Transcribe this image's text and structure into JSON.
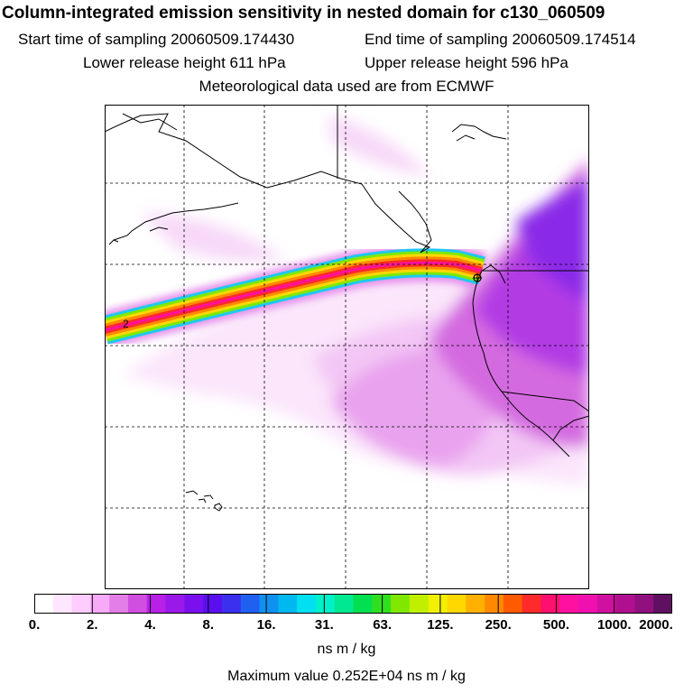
{
  "title": "Column-integrated emission sensitivity in nested domain for c130_060509",
  "sampling": {
    "start_label": "Start time of sampling 20060509.174430",
    "end_label": "End time of sampling 20060509.174514"
  },
  "release": {
    "lower_label": "Lower release height  611 hPa",
    "upper_label": "Upper release height  596 hPa"
  },
  "met_label": "Meteorological data used are from ECMWF",
  "map": {
    "contour_label": "2"
  },
  "colorbar": {
    "tick_labels": [
      "0.",
      "2.",
      "4.",
      "8.",
      "16.",
      "31.",
      "63.",
      "125.",
      "250.",
      "500.",
      "1000.",
      "2000."
    ],
    "colors": [
      "#ffffff",
      "#ffe6ff",
      "#ffccff",
      "#f7aaf7",
      "#e37de8",
      "#d04ee0",
      "#b820e8",
      "#9a18e8",
      "#7a10ee",
      "#5a10ee",
      "#3a30ee",
      "#2060f0",
      "#1090f0",
      "#00b8f0",
      "#00e0f0",
      "#00f0c8",
      "#00e890",
      "#00e050",
      "#30e020",
      "#80e800",
      "#c0f000",
      "#f0f000",
      "#ffd800",
      "#ffb000",
      "#ff8a00",
      "#ff5a00",
      "#ff2a2a",
      "#ff1070",
      "#ff10a0",
      "#f010b0",
      "#d010a0",
      "#b01090",
      "#901080",
      "#601060"
    ],
    "units": "ns m / kg",
    "max_label": "Maximum value  0.252E+04 ns m / kg"
  }
}
